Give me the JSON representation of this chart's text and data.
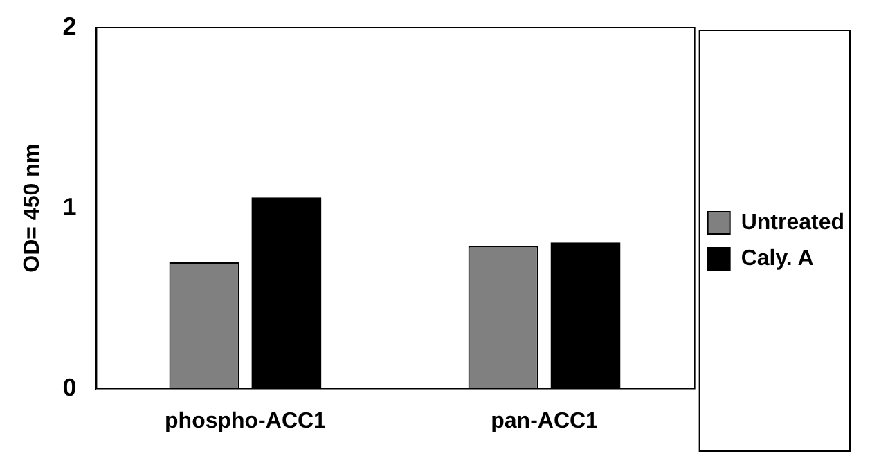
{
  "chart_data": {
    "type": "bar",
    "ylabel": "OD= 450 nm",
    "categories": [
      "phospho-ACC1",
      "pan-ACC1"
    ],
    "series": [
      {
        "name": "Untreated",
        "color": "#808080",
        "values": [
          0.7,
          0.79
        ]
      },
      {
        "name": "Caly. A",
        "color": "#000000",
        "values": [
          1.06,
          0.81
        ]
      }
    ],
    "ylim": [
      0,
      2
    ],
    "yticks": [
      0,
      1,
      2
    ],
    "grid": false,
    "legend": "right"
  }
}
